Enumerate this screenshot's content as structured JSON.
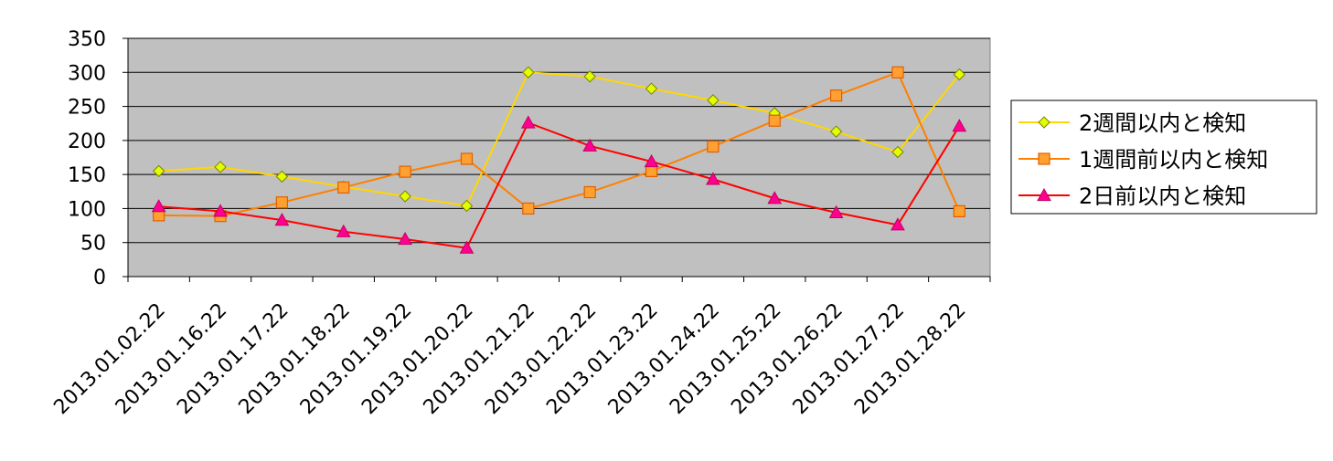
{
  "chart_data": {
    "type": "line",
    "title": "",
    "xlabel": "",
    "ylabel": "",
    "categories": [
      "2013.01.02.22",
      "2013.01.16.22",
      "2013.01.17.22",
      "2013.01.18.22",
      "2013.01.19.22",
      "2013.01.20.22",
      "2013.01.21.22",
      "2013.01.22.22",
      "2013.01.23.22",
      "2013.01.24.22",
      "2013.01.25.22",
      "2013.01.26.22",
      "2013.01.27.22",
      "2013.01.28.22"
    ],
    "ylim": [
      0,
      350
    ],
    "yticks": [
      "0",
      "50",
      "100",
      "150",
      "200",
      "250",
      "300",
      "350"
    ],
    "grid": true,
    "legend_position": "right",
    "plot_background": "#c0c0c0",
    "series": [
      {
        "name": "2週間以内と検知",
        "line_color": "#ffd700",
        "marker": "diamond",
        "marker_color": "#e0ff00",
        "values": [
          155,
          161,
          147,
          132,
          118,
          104,
          300,
          294,
          276,
          259,
          240,
          213,
          183,
          297
        ]
      },
      {
        "name": "1週間前以内と検知",
        "line_color": "#ff7f00",
        "marker": "square",
        "marker_color": "#ffa030",
        "values": [
          90,
          89,
          109,
          131,
          154,
          173,
          100,
          124,
          155,
          191,
          229,
          266,
          300,
          96
        ]
      },
      {
        "name": "2日前以内と検知",
        "line_color": "#ff0000",
        "marker": "triangle",
        "marker_color": "#ff0090",
        "values": [
          103,
          96,
          83,
          66,
          55,
          42,
          226,
          192,
          169,
          143,
          115,
          94,
          76,
          221
        ]
      }
    ]
  }
}
